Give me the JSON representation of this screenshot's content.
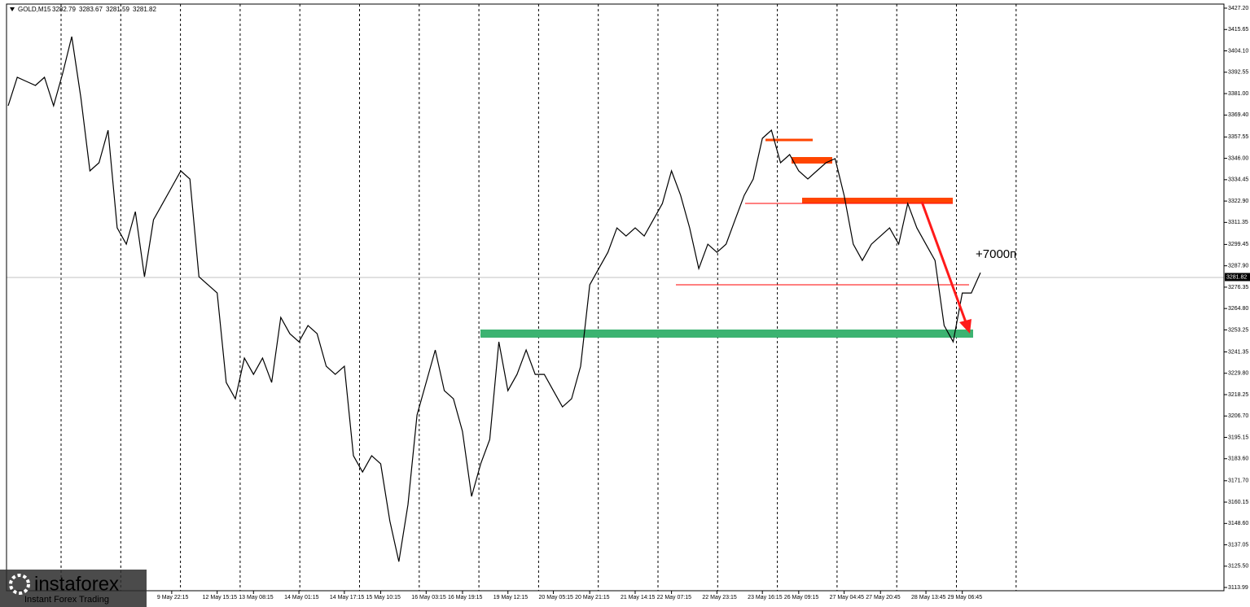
{
  "chart_data": {
    "type": "line",
    "quote": {
      "symbol": "GOLD,M15",
      "open": 3282.79,
      "high": 3283.67,
      "low": 3281.59,
      "close": 3281.82
    },
    "current_price": 3281.82,
    "annotation": "+7000п",
    "color": "#000000",
    "categories": [
      null,
      null,
      null,
      null,
      null,
      null,
      null,
      null,
      null,
      null,
      null,
      null,
      null,
      null,
      null,
      null,
      null,
      null,
      "9 May 22:15",
      null,
      null,
      null,
      null,
      "12 May 15:15",
      null,
      null,
      null,
      "13 May 08:15",
      null,
      null,
      null,
      null,
      "14 May 01:15",
      null,
      null,
      null,
      null,
      "14 May 17:15",
      null,
      null,
      null,
      "15 May 10:15",
      null,
      null,
      null,
      null,
      "16 May 03:15",
      null,
      null,
      null,
      "16 May 19:15",
      null,
      null,
      null,
      null,
      "19 May 12:15",
      null,
      null,
      null,
      null,
      "20 May 05:15",
      null,
      null,
      null,
      "20 May 21:15",
      null,
      null,
      null,
      null,
      "21 May 14:15",
      null,
      null,
      null,
      "22 May 07:15",
      null,
      null,
      null,
      null,
      "22 May 23:15",
      null,
      null,
      null,
      null,
      "23 May 16:15",
      null,
      null,
      null,
      "26 May 09:15",
      null,
      null,
      null,
      null,
      "27 May 04:45",
      null,
      null,
      null,
      "27 May 20:45",
      null,
      null,
      null,
      null,
      "28 May 13:45",
      null,
      null,
      null,
      "29 May 06:45",
      null,
      null
    ],
    "values": [
      3374.4,
      3389.8,
      3387.6,
      3385.4,
      3389.8,
      3374.4,
      3392,
      3411.8,
      3378.8,
      3339.2,
      3343.6,
      3361.2,
      3308.4,
      3299.6,
      3317.2,
      3282,
      3312.8,
      3321.6,
      3330.4,
      3339.2,
      3334.8,
      3282,
      3277.6,
      3273.2,
      3224.8,
      3216,
      3238,
      3229.2,
      3238,
      3224.8,
      3260,
      3251.2,
      3246.8,
      3255.6,
      3251.2,
      3233.6,
      3229.2,
      3233.6,
      3185.2,
      3176.4,
      3185.2,
      3180.8,
      3150,
      3128,
      3158.8,
      3207.2,
      3224.8,
      3242.4,
      3220.4,
      3216,
      3198.4,
      3163.2,
      3180.8,
      3194,
      3246.8,
      3220.4,
      3229.2,
      3242.4,
      3229.2,
      3229.2,
      3220.4,
      3211.6,
      3216,
      3233.6,
      3277.6,
      3286.4,
      3295.2,
      3308.4,
      3304,
      3308.4,
      3304,
      3312.8,
      3321.6,
      3339.2,
      3326,
      3308.4,
      3286.4,
      3299.6,
      3295.2,
      3299.6,
      3312.8,
      3326,
      3334.8,
      3356.8,
      3361.2,
      3343.6,
      3348,
      3339.2,
      3334.8,
      3339.2,
      3343.6,
      3345.8,
      3326,
      3299.6,
      3290.8,
      3299.6,
      3304,
      3308.4,
      3299.6,
      3321.6,
      3308.4,
      3299.6,
      3290.8,
      3255.6,
      3246.8,
      3273.2,
      3273.2,
      3284.2
    ],
    "ylim": [
      3113.99,
      3427.2
    ],
    "yticks": [
      {
        "value": 3427.2,
        "label": "3427.20"
      },
      3415.65,
      {
        "value": 3404.1,
        "label": "3404.10"
      },
      3392.55,
      {
        "value": 3381,
        "label": "3381.00"
      },
      {
        "value": 3369.4,
        "label": "3369.40"
      },
      3357.55,
      {
        "value": 3346,
        "label": "3346.00"
      },
      3334.45,
      {
        "value": 3322.9,
        "label": "3322.90"
      },
      3311.35,
      3299.45,
      {
        "value": 3287.9,
        "label": "3287.90"
      },
      3276.35,
      {
        "value": 3264.8,
        "label": "3264.80"
      },
      3253.25,
      3241.35,
      {
        "value": 3229.8,
        "label": "3229.80"
      },
      3218.25,
      {
        "value": 3206.7,
        "label": "3206.70"
      },
      3195.15,
      {
        "value": 3183.6,
        "label": "3183.60"
      },
      {
        "value": 3171.7,
        "label": "3171.70"
      },
      3160.15,
      {
        "value": 3148.6,
        "label": "3148.60"
      },
      3137.05,
      {
        "value": 3125.5,
        "label": "3125.50"
      },
      3113.99
    ]
  },
  "branding": {
    "name": "instaforex",
    "tagline": "Instant Forex Trading"
  }
}
